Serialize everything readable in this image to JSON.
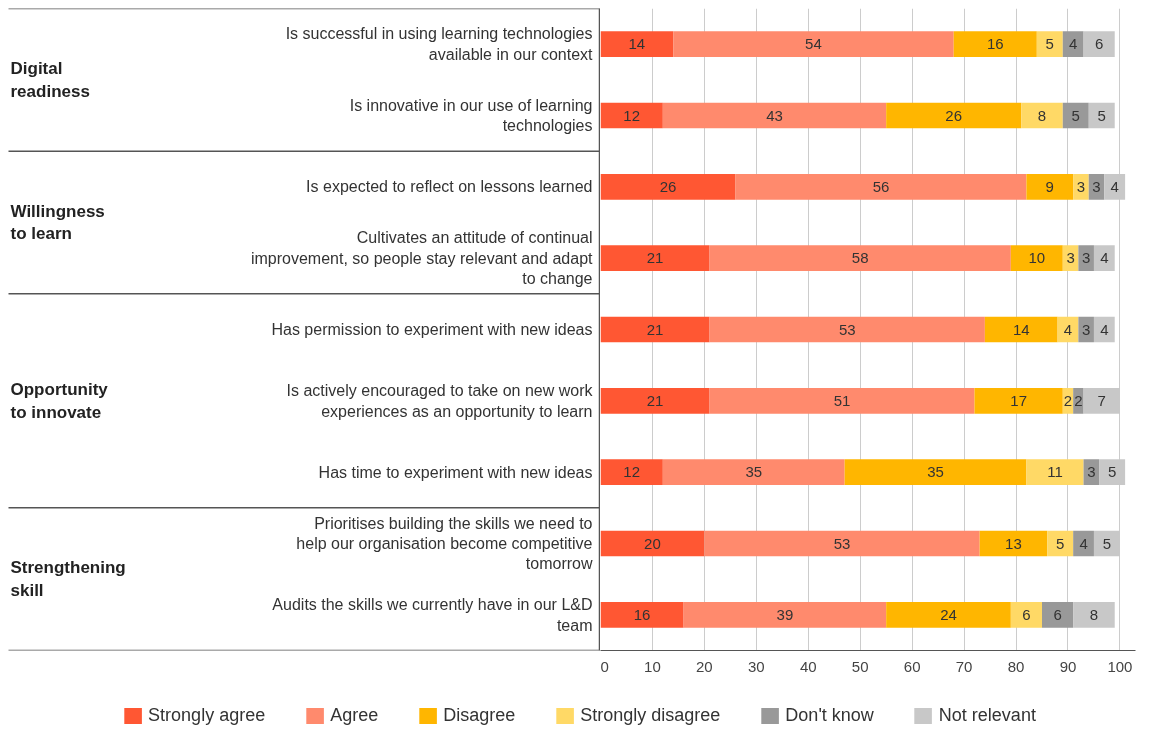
{
  "chart_data": {
    "type": "bar",
    "orientation": "horizontal",
    "stacked": true,
    "categories": [
      "Is successful in using learning technologies available in our context",
      "Is innovative in our use of learning technologies",
      "Is expected to reflect on lessons learned",
      "Cultivates an attitude of continual improvement, so people stay relevant and adapt to change",
      "Has permission to experiment with new ideas",
      "Is actively encouraged to take on new work experiences as an opportunity to learn",
      "Has time to experiment with new ideas",
      "Prioritises building the skills we need to help our organisation become competitive tomorrow",
      "Audits the skills we currently have in our L&D team"
    ],
    "series": [
      {
        "name": "Strongly agree",
        "color": "#ff5733",
        "values": [
          14,
          12,
          26,
          21,
          21,
          21,
          12,
          20,
          16
        ]
      },
      {
        "name": "Agree",
        "color": "#ff8a6d",
        "values": [
          54,
          43,
          56,
          58,
          53,
          51,
          35,
          53,
          39
        ]
      },
      {
        "name": "Disagree",
        "color": "#ffb600",
        "values": [
          16,
          26,
          9,
          10,
          14,
          17,
          35,
          13,
          24
        ]
      },
      {
        "name": "Strongly disagree",
        "color": "#ffd966",
        "values": [
          5,
          8,
          3,
          3,
          4,
          2,
          11,
          5,
          6
        ]
      },
      {
        "name": "Don't know",
        "color": "#999999",
        "values": [
          4,
          5,
          3,
          3,
          3,
          2,
          3,
          4,
          6
        ]
      },
      {
        "name": "Not relevant",
        "color": "#c8c8c8",
        "values": [
          6,
          5,
          4,
          4,
          4,
          7,
          5,
          5,
          8
        ]
      }
    ],
    "annotations": [
      "Digital readiness",
      "Willingness to learn",
      "Opportunity to innovate",
      "Strengthening skill"
    ],
    "xlim": [
      0,
      103
    ],
    "xticks": [
      0,
      10,
      20,
      30,
      40,
      50,
      60,
      70,
      80,
      90,
      100
    ],
    "data_labels": true,
    "grid": "x",
    "legend": "bottom"
  }
}
